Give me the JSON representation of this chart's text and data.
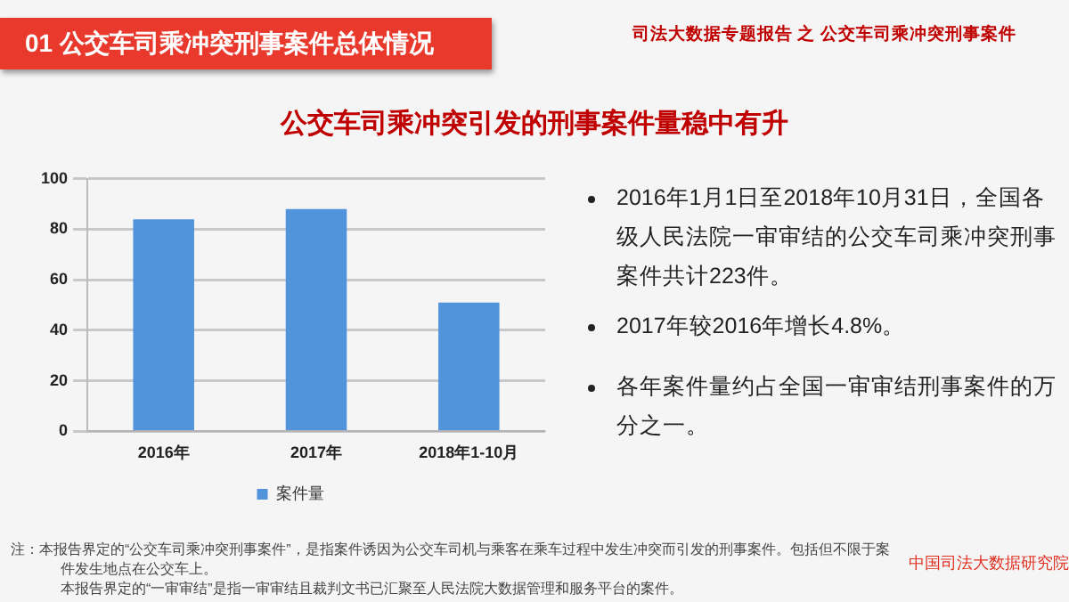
{
  "chart_data": {
    "type": "bar",
    "title": "公交车司乘冲突引发的刑事案件量稳中有升",
    "categories": [
      "2016年",
      "2017年",
      "2018年1-10月"
    ],
    "series": [
      {
        "name": "案件量",
        "color": "#5294dc",
        "values": [
          84,
          88,
          51
        ]
      }
    ],
    "ylim": [
      0,
      100
    ],
    "yticks": [
      0,
      20,
      40,
      60,
      80,
      100
    ],
    "grid": "y",
    "legend": "bottom",
    "annotations": [
      "01  公交车司乘冲突刑事案件总体情况",
      "司法大数据专题报告 之 公交车司乘冲突刑事案件",
      "2016年1月1日至2018年10月31日，全国各级人民法院一审审结的公交车司乘冲突刑事案件共计223件。",
      "2017年较2016年增长4.8%。",
      "各年案件量约占全国一审审结刑事案件的万分之一。",
      "注：本报告界定的“公交车司乘冲突刑事案件”，是指案件诱因为公交车司机与乘客在乘车过程中发生冲突而引发的刑事案件。包括但不限于案件发生地点在公交车上。",
      "本报告界定的“一审审结”是指一审审结且裁判文书已汇聚至人民法院大数据管理和服务平台的案件。",
      "中国司法大数据研究院"
    ]
  }
}
